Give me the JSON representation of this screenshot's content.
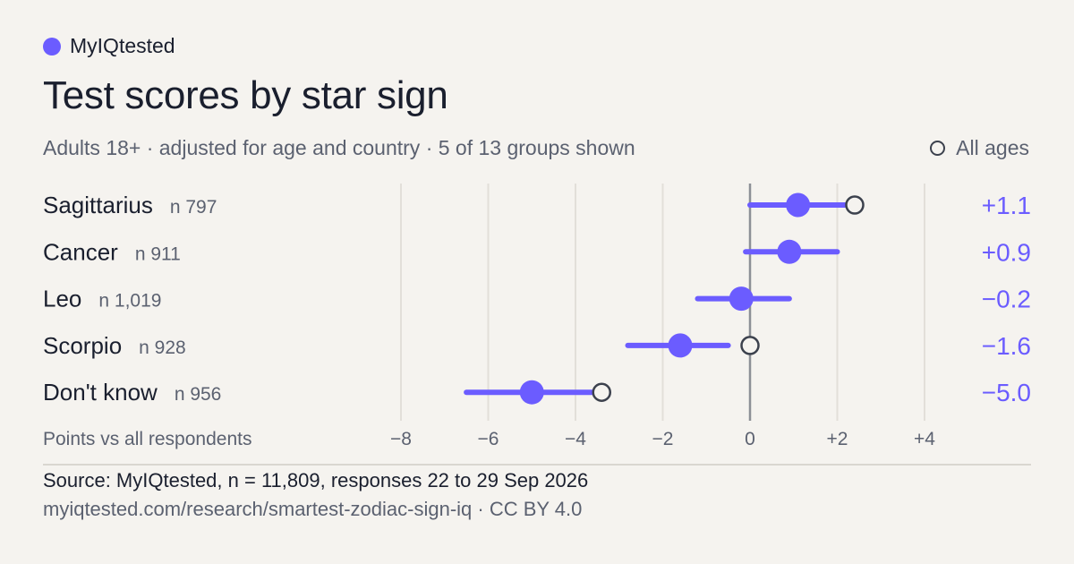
{
  "brand": {
    "name": "MyIQtested",
    "color": "#6b5cff"
  },
  "title": "Test scores by star sign",
  "subtitle": "Adults 18+ · adjusted for age and country · 5 of 13 groups shown",
  "legend": {
    "all_ages_label": "All ages"
  },
  "colors": {
    "accent": "#6b5cff",
    "ring": "#3c414d",
    "zero_line": "#8c8f96",
    "grid": "#e2dfd9",
    "muted": "#5b6170"
  },
  "chart_data": {
    "type": "dot-range",
    "xlabel": "Points vs all respondents",
    "xlim": [
      -8,
      4
    ],
    "xticks": [
      -8,
      -6,
      -4,
      -2,
      0,
      2,
      4
    ],
    "xtick_labels": [
      "−8",
      "−6",
      "−4",
      "−2",
      "0",
      "+2",
      "+4"
    ],
    "grid": true,
    "legend_position": "top-right",
    "rows": [
      {
        "label": "Sagittarius",
        "n": "n 797",
        "value": 1.1,
        "value_label": "+1.1",
        "low": 0.0,
        "high": 2.4,
        "all_ages": 2.4
      },
      {
        "label": "Cancer",
        "n": "n 911",
        "value": 0.9,
        "value_label": "+0.9",
        "low": -0.1,
        "high": 2.0,
        "all_ages": null
      },
      {
        "label": "Leo",
        "n": "n 1,019",
        "value": -0.2,
        "value_label": "−0.2",
        "low": -1.2,
        "high": 0.9,
        "all_ages": null
      },
      {
        "label": "Scorpio",
        "n": "n 928",
        "value": -1.6,
        "value_label": "−1.6",
        "low": -2.8,
        "high": -0.5,
        "all_ages": 0.0
      },
      {
        "label": "Don't know",
        "n": "n 956",
        "value": -5.0,
        "value_label": "−5.0",
        "low": -6.5,
        "high": -3.4,
        "all_ages": -3.4
      }
    ]
  },
  "footer": {
    "source": "Source: MyIQtested, n = 11,809, responses 22 to 29 Sep 2026",
    "url": "myiqtested.com/research/smartest-zodiac-sign-iq · CC BY 4.0"
  }
}
